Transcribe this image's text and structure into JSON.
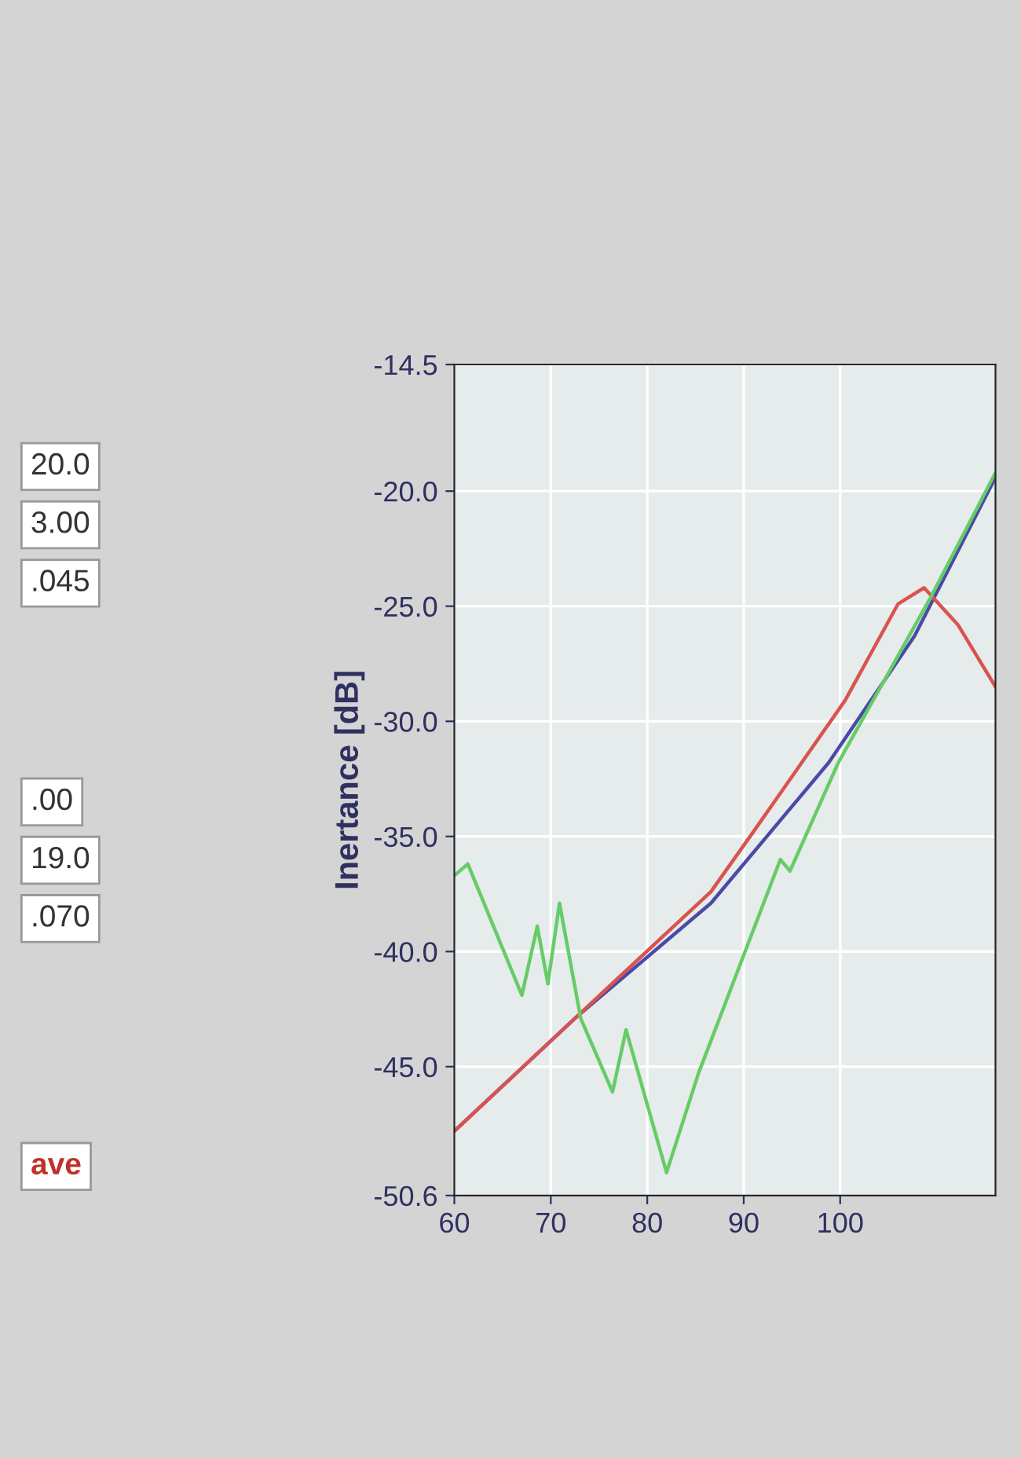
{
  "chart_data": {
    "type": "line",
    "ylabel": "Inertance [dB]",
    "xlim": [
      60,
      116.1
    ],
    "xticks": [
      60,
      70,
      80,
      90,
      100
    ],
    "ylim": [
      -50.6,
      -14.5
    ],
    "yticks": [
      -50.6,
      {
        "value": -45,
        "label": "-45.0"
      },
      {
        "value": -40,
        "label": "-40.0"
      },
      {
        "value": -35,
        "label": "-35.0"
      },
      {
        "value": -30,
        "label": "-30.0"
      },
      {
        "value": -25,
        "label": "-25.0"
      },
      {
        "value": -20,
        "label": "-20.0"
      },
      -14.5
    ],
    "grid": true,
    "line_style": "solid",
    "series": [
      {
        "color": "#4a4aa8",
        "x": [
          60,
          72.5,
          86.6,
          98.8,
          107.7,
          116.1
        ],
        "values": [
          -47.8,
          -42.9,
          -37.9,
          -31.8,
          -26.3,
          -19.4
        ]
      },
      {
        "color": "#d9534f",
        "x": [
          60,
          72.5,
          86.6,
          91,
          100.5,
          106,
          108.7,
          112.2,
          116.1
        ],
        "values": [
          -47.8,
          -42.9,
          -37.4,
          -34.8,
          -29.1,
          -24.9,
          -24.2,
          -25.8,
          -28.5
        ]
      },
      {
        "color": "#66cc66",
        "x": [
          60,
          61.4,
          67,
          68.6,
          69.7,
          70.9,
          73.1,
          76.4,
          77.8,
          82,
          85.3,
          93.8,
          94.8,
          99.8,
          109.4,
          116.1
        ],
        "values": [
          -36.7,
          -36.2,
          -41.9,
          -38.9,
          -41.4,
          -37.9,
          -42.9,
          -46.1,
          -43.4,
          -49.6,
          -45.3,
          -36.0,
          -36.5,
          -31.8,
          -24.6,
          -19.2
        ]
      }
    ],
    "annotations": [
      "20.0",
      "3.00",
      ".045",
      ".00",
      "19.0",
      ".070",
      "ave"
    ]
  }
}
